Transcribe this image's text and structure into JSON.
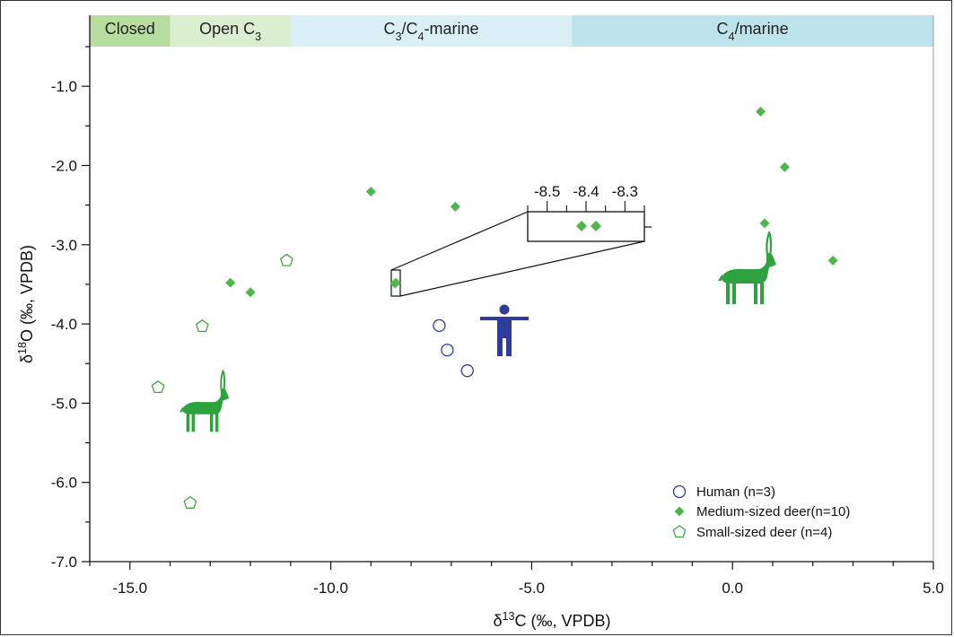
{
  "chart_data": {
    "type": "scatter",
    "xlabel": "δ13C (‰, VPDB)",
    "ylabel": "δ18O (‰, VPDB)",
    "xlim": [
      -16.0,
      5.0
    ],
    "ylim": [
      -7.0,
      -0.5
    ],
    "x_ticks": [
      -15.0,
      -10.0,
      -5.0,
      0.0,
      5.0
    ],
    "x_tick_labels": [
      "-15.0",
      "-10.0",
      "-5.0",
      "0.0",
      "5.0"
    ],
    "y_ticks": [
      -1.0,
      -2.0,
      -3.0,
      -4.0,
      -5.0,
      -6.0,
      -7.0
    ],
    "y_tick_labels": [
      "-1.0",
      "-2.0",
      "-3.0",
      "-4.0",
      "-5.0",
      "-6.0",
      "-7.0"
    ],
    "grid": false,
    "legend_position": "bottom-right",
    "bands": [
      {
        "label": "Closed",
        "x_start": -16.0,
        "x_end": -14.0,
        "color": "#b7dca0"
      },
      {
        "label": "Open C3",
        "x_start": -14.0,
        "x_end": -11.0,
        "color": "#daeed0"
      },
      {
        "label": "C3/C4-marine",
        "x_start": -11.0,
        "x_end": -4.0,
        "color": "#dbf0f6"
      },
      {
        "label": "C4/marine",
        "x_start": -4.0,
        "x_end": 5.0,
        "color": "#bde4ec"
      }
    ],
    "series": [
      {
        "name": "Human (n=3)",
        "marker": "circle-open",
        "color": "#2d3d99",
        "points": [
          [
            -7.3,
            -4.02
          ],
          [
            -7.1,
            -4.33
          ],
          [
            -6.6,
            -4.59
          ]
        ]
      },
      {
        "name": "Medium-sized deer(n=10)",
        "marker": "diamond-filled",
        "color": "#4cb84c",
        "points": [
          [
            -12.5,
            -3.48
          ],
          [
            -12.0,
            -3.6
          ],
          [
            -9.0,
            -2.33
          ],
          [
            -6.9,
            -2.52
          ],
          [
            -8.4,
            -3.49
          ],
          [
            -8.38,
            -3.48
          ],
          [
            0.7,
            -1.32
          ],
          [
            1.3,
            -2.02
          ],
          [
            0.8,
            -2.73
          ],
          [
            2.5,
            -3.2
          ]
        ]
      },
      {
        "name": "Small-sized deer (n=4)",
        "marker": "pentagon-open",
        "color": "#3daa3d",
        "points": [
          [
            -11.1,
            -3.2
          ],
          [
            -13.2,
            -4.03
          ],
          [
            -14.3,
            -4.8
          ],
          [
            -13.5,
            -6.26
          ]
        ]
      }
    ],
    "inset": {
      "x_ticks": [
        -8.5,
        -8.4,
        -8.3
      ],
      "x_tick_labels": [
        "-8.5",
        "-8.4",
        "-8.3"
      ],
      "xlim": [
        -8.55,
        -8.25
      ],
      "points": [
        [
          -8.4,
          -3.5
        ],
        [
          -8.38,
          -3.5
        ]
      ]
    }
  },
  "colors": {
    "human_icon": "#2d3d99",
    "deer_icon": "#2ea23e"
  },
  "icons": [
    "human-icon",
    "deer-icon-large",
    "deer-icon-small"
  ]
}
